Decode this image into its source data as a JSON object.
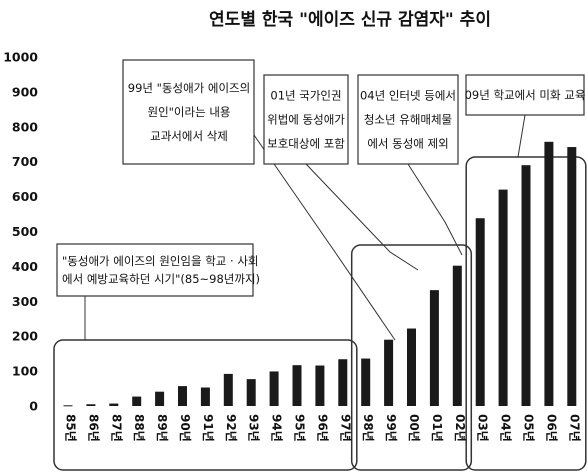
{
  "chart_data": {
    "type": "bar",
    "title": "연도별 한국 \"에이즈 신규 감염자\" 추이",
    "ylim": [
      0,
      1000
    ],
    "yticks": [
      0,
      100,
      200,
      300,
      400,
      500,
      600,
      700,
      800,
      900,
      1000
    ],
    "categories": [
      "85년",
      "86년",
      "87년",
      "88년",
      "89년",
      "90년",
      "91년",
      "92년",
      "93년",
      "94년",
      "95년",
      "96년",
      "97년",
      "98년",
      "99년",
      "00년",
      "01년",
      "02년",
      "03년",
      "04년",
      "05년",
      "06년",
      "07년"
    ],
    "values": [
      2,
      5,
      7,
      27,
      41,
      57,
      53,
      92,
      77,
      99,
      117,
      116,
      134,
      136,
      190,
      222,
      332,
      402,
      538,
      620,
      690,
      757,
      742
    ],
    "grid": false,
    "colors": {
      "bar": "#1a1a1a",
      "axis": "#333333"
    },
    "annotations": [
      {
        "lines": [
          "\"동성애가 에이즈의 원인임을 학교 · 사회",
          "에서 예방교육하던 시기\"(85~98년까지)"
        ]
      },
      {
        "lines": [
          "99년 \"동성애가 에이즈의",
          "원인\"이라는 내용",
          "교과서에서 삭제"
        ]
      },
      {
        "lines": [
          "01년 국가인권",
          "위법에 동성애가",
          "보호대상에 포함"
        ]
      },
      {
        "lines": [
          "04년 인터넷 등에서",
          "청소년 유해매체물",
          "에서 동성애 제외"
        ]
      },
      {
        "lines": [
          "09년 학교에서 미화 교육"
        ]
      }
    ]
  }
}
